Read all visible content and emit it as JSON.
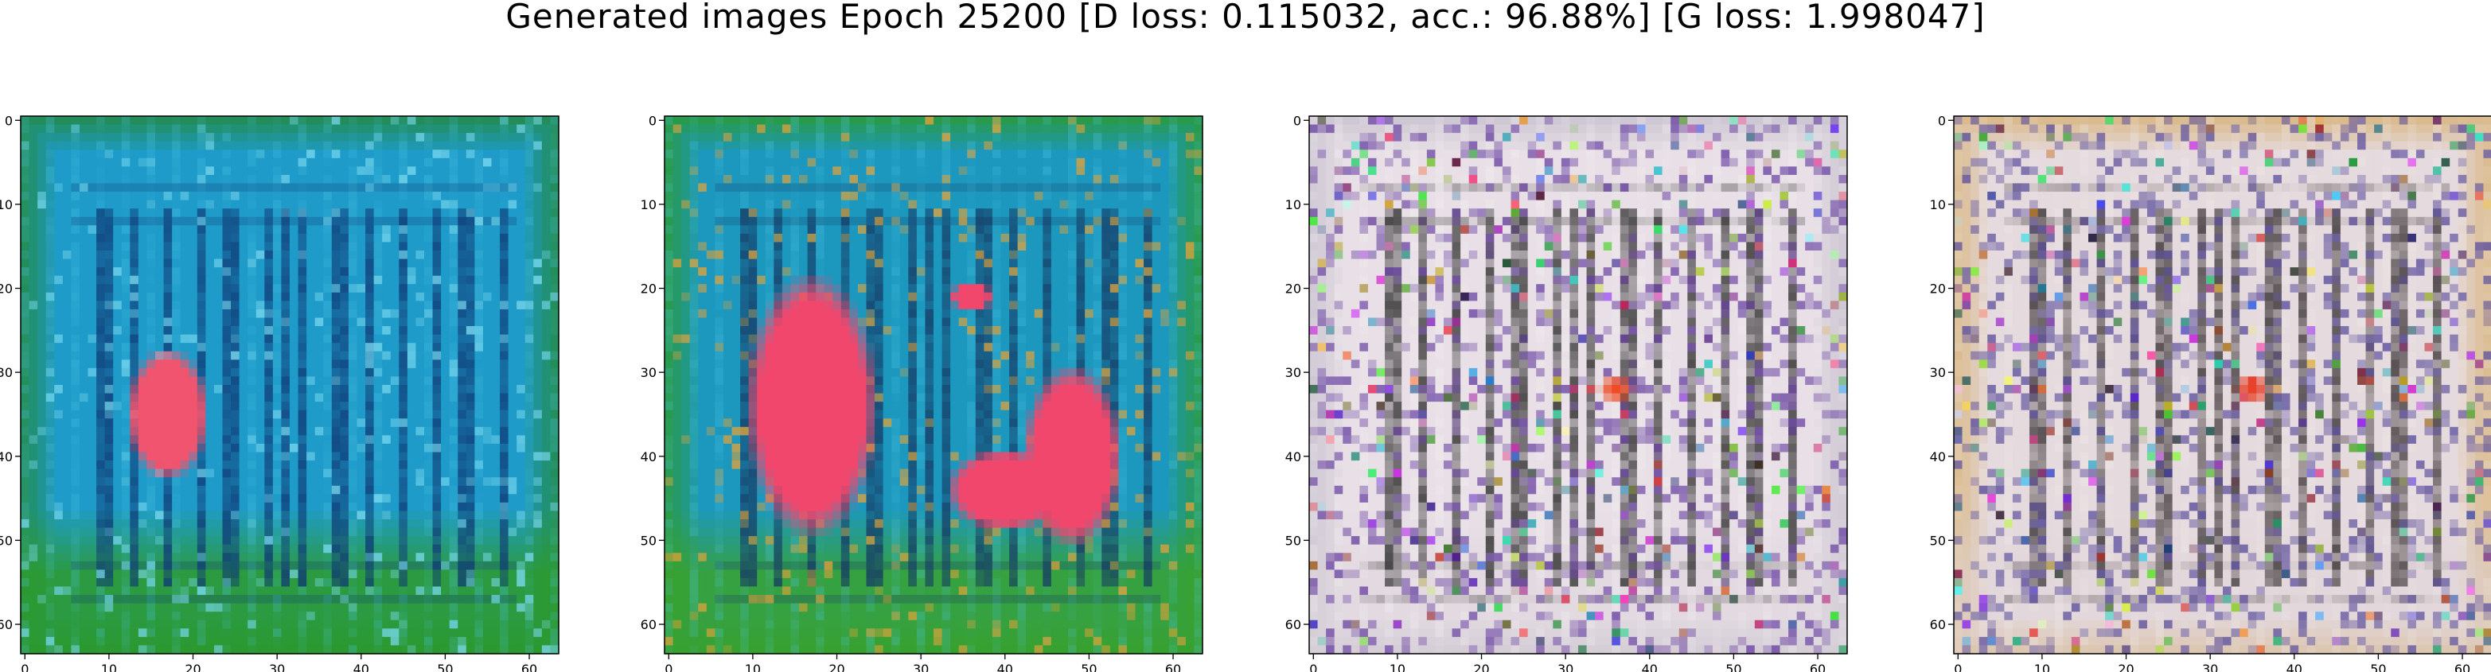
{
  "figure": {
    "title": "Generated images Epoch 25200 [D loss: 0.115032, acc.: 96.88%] [G loss: 1.998047]"
  },
  "axes_ticks": {
    "x": [
      "0",
      "10",
      "20",
      "30",
      "40",
      "50",
      "60"
    ],
    "y": [
      "0",
      "10",
      "20",
      "30",
      "40",
      "50",
      "60"
    ]
  },
  "image_grid": {
    "rows": 64,
    "cols": 64
  },
  "panels": [
    {
      "id": "sample-1",
      "palette": {
        "base": "#1e9bc9",
        "border": "#238a3f",
        "bottom": "#2d9a28",
        "stripe_dark": "#0f3a76",
        "stripe_light": "#4ec6e8",
        "blob": "#f0546e",
        "noise": "#79d9ef"
      }
    },
    {
      "id": "sample-2",
      "palette": {
        "base": "#1c98bf",
        "border": "#2b9a2f",
        "bottom": "#3aa22b",
        "stripe_dark": "#153b65",
        "stripe_light": "#51c8e4",
        "blob": "#f2476d",
        "noise": "#e0a23a"
      }
    },
    {
      "id": "sample-3",
      "palette": {
        "base": "#e8e0e6",
        "border": "#c8c1cf",
        "bottom": "#ddd4db",
        "stripe_dark": "#3f3d3e",
        "stripe_light": "#f7f4f6",
        "blob": "#ef4b25",
        "noise": "#6b45a3"
      }
    },
    {
      "id": "sample-4",
      "palette": {
        "base": "#e5dadd",
        "border": "#d7b37b",
        "bottom": "#dfd3d7",
        "stripe_dark": "#4a4345",
        "stripe_light": "#f4efef",
        "blob": "#e8412a",
        "noise": "#5c4f9d"
      }
    }
  ]
}
